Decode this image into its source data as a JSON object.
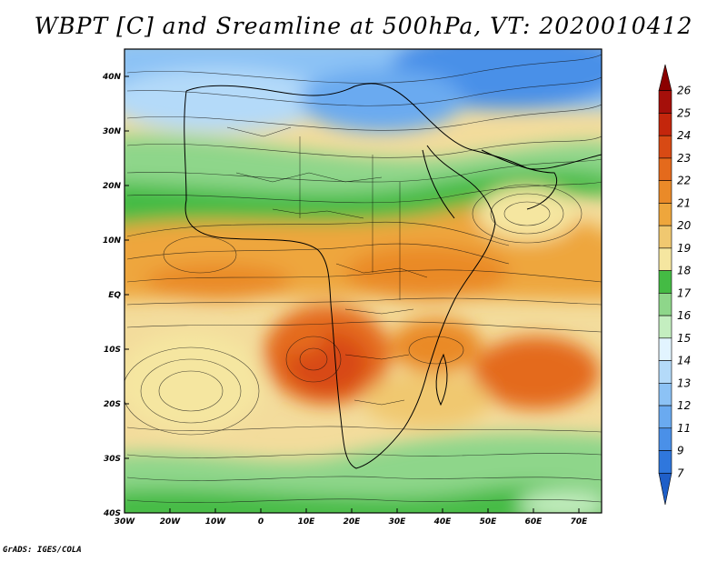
{
  "title": "WBPT [C] and Sreamline at 500hPa, VT: 2020010412",
  "footer": "GrADS: IGES/COLA",
  "chart_data": {
    "type": "heatmap",
    "title": "WBPT [C] and Sreamline at 500hPa, VT: 2020010412",
    "variable": "WBPT",
    "units": "C",
    "level": "500hPa",
    "valid_time": "2020010412",
    "overlay": "streamlines",
    "x_range": [
      -30,
      75
    ],
    "y_range": [
      -40,
      45
    ],
    "x_ticks": [
      "30W",
      "20W",
      "10W",
      "0",
      "10E",
      "20E",
      "30E",
      "40E",
      "50E",
      "60E",
      "70E"
    ],
    "x_tick_values": [
      -30,
      -20,
      -10,
      0,
      10,
      20,
      30,
      40,
      50,
      60,
      70
    ],
    "y_ticks": [
      "40S",
      "30S",
      "20S",
      "10S",
      "EQ",
      "10N",
      "20N",
      "30N",
      "40N"
    ],
    "y_tick_values": [
      -40,
      -30,
      -20,
      -10,
      0,
      10,
      20,
      30,
      40
    ],
    "colorbar": {
      "levels": [
        "7",
        "9",
        "11",
        "12",
        "13",
        "14",
        "15",
        "16",
        "17",
        "18",
        "19",
        "20",
        "21",
        "22",
        "23",
        "24",
        "25",
        "26"
      ],
      "colors": [
        "#1f5fc8",
        "#2f77dd",
        "#4a90e8",
        "#6aaaf0",
        "#8cc2f5",
        "#b4daf9",
        "#e2f4ff",
        "#c4eec0",
        "#8ed68a",
        "#44bb44",
        "#f5e6a0",
        "#f0c870",
        "#eea63c",
        "#ea8a28",
        "#e46a1c",
        "#d84a14",
        "#c4260c",
        "#a50f0a",
        "#8b0000"
      ]
    },
    "fields": {
      "north_cold_region": "13-16",
      "equatorial_band": "19-22",
      "central_africa_max": "23-25",
      "south_cold_region": "16-18"
    }
  }
}
